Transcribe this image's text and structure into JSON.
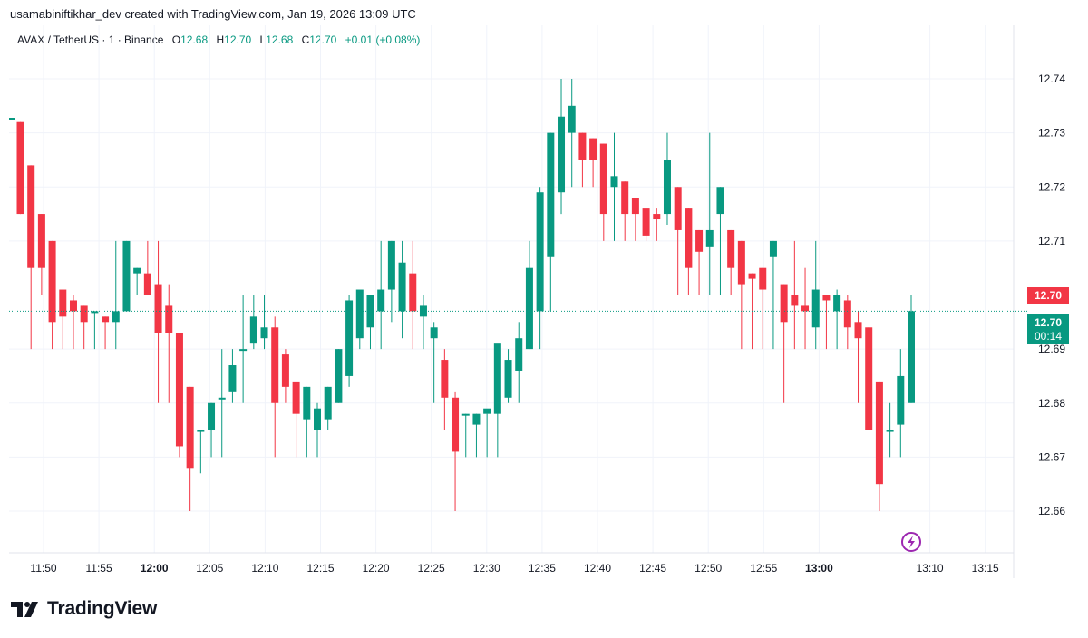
{
  "header": {
    "attribution": "usamabiniftikhar_dev created with TradingView.com, Jan 19, 2026 13:09 UTC"
  },
  "legend": {
    "symbol": "AVAX / TetherUS · 1 · Binance",
    "o_label": "O",
    "o_value": "12.68",
    "h_label": "H",
    "h_value": "12.70",
    "l_label": "L",
    "l_value": "12.68",
    "c_label": "C",
    "c_value": "12.70",
    "change": "+0.01 (+0.08%)"
  },
  "price_badges": {
    "high_marker": "12.70",
    "last_price": "12.70",
    "countdown": "00:14"
  },
  "footer": {
    "brand": "TradingView"
  },
  "colors": {
    "up": "#089981",
    "down": "#F23645",
    "grid": "#F0F3FA",
    "text": "#131722",
    "accent": "#9C27B0"
  },
  "chart_data": {
    "type": "candlestick",
    "title": "AVAX / TetherUS · 1 · Binance",
    "y_range": [
      12.655,
      12.745
    ],
    "y_ticks": [
      "12.74",
      "12.73",
      "12.72",
      "12.71",
      "12.70",
      "12.69",
      "12.68",
      "12.67",
      "12.66"
    ],
    "x_ticks": [
      {
        "label": "11:50",
        "bold": false
      },
      {
        "label": "11:55",
        "bold": false
      },
      {
        "label": "12:00",
        "bold": true
      },
      {
        "label": "12:05",
        "bold": false
      },
      {
        "label": "12:10",
        "bold": false
      },
      {
        "label": "12:15",
        "bold": false
      },
      {
        "label": "12:20",
        "bold": false
      },
      {
        "label": "12:25",
        "bold": false
      },
      {
        "label": "12:30",
        "bold": false
      },
      {
        "label": "12:35",
        "bold": false
      },
      {
        "label": "12:40",
        "bold": false
      },
      {
        "label": "12:45",
        "bold": false
      },
      {
        "label": "12:50",
        "bold": false
      },
      {
        "label": "12:55",
        "bold": false
      },
      {
        "label": "13:00",
        "bold": true
      },
      {
        "label": "13:10",
        "bold": false
      },
      {
        "label": "13:15",
        "bold": false
      }
    ],
    "x_tick_minutes": [
      0,
      5,
      10,
      15,
      20,
      25,
      30,
      35,
      40,
      45,
      50,
      55,
      60,
      65,
      70,
      80,
      85
    ],
    "time_start": "11:48",
    "candles_ohlc": [
      [
        12.732,
        12.732,
        12.715,
        12.715
      ],
      [
        12.724,
        12.724,
        12.69,
        12.705
      ],
      [
        12.715,
        12.715,
        12.7,
        12.705
      ],
      [
        12.71,
        12.71,
        12.69,
        12.695
      ],
      [
        12.701,
        12.701,
        12.69,
        12.696
      ],
      [
        12.699,
        12.7,
        12.69,
        12.697
      ],
      [
        12.698,
        12.698,
        12.69,
        12.695
      ],
      [
        12.697,
        12.697,
        12.69,
        12.697
      ],
      [
        12.696,
        12.696,
        12.69,
        12.695
      ],
      [
        12.695,
        12.71,
        12.69,
        12.697
      ],
      [
        12.697,
        12.71,
        12.697,
        12.71
      ],
      [
        12.704,
        12.705,
        12.7,
        12.705
      ],
      [
        12.704,
        12.71,
        12.7,
        12.7
      ],
      [
        12.702,
        12.71,
        12.68,
        12.693
      ],
      [
        12.698,
        12.702,
        12.68,
        12.693
      ],
      [
        12.693,
        12.693,
        12.67,
        12.672
      ],
      [
        12.683,
        12.683,
        12.66,
        12.668
      ],
      [
        12.675,
        12.675,
        12.667,
        12.675
      ],
      [
        12.675,
        12.68,
        12.67,
        12.68
      ],
      [
        12.681,
        12.69,
        12.67,
        12.681
      ],
      [
        12.682,
        12.69,
        12.68,
        12.687
      ],
      [
        12.69,
        12.7,
        12.68,
        12.69
      ],
      [
        12.691,
        12.7,
        12.69,
        12.696
      ],
      [
        12.692,
        12.7,
        12.69,
        12.694
      ],
      [
        12.694,
        12.696,
        12.67,
        12.68
      ],
      [
        12.689,
        12.69,
        12.68,
        12.683
      ],
      [
        12.684,
        12.684,
        12.67,
        12.678
      ],
      [
        12.677,
        12.683,
        12.67,
        12.683
      ],
      [
        12.675,
        12.68,
        12.67,
        12.679
      ],
      [
        12.677,
        12.683,
        12.675,
        12.683
      ],
      [
        12.68,
        12.69,
        12.68,
        12.69
      ],
      [
        12.685,
        12.7,
        12.683,
        12.699
      ],
      [
        12.692,
        12.7,
        12.69,
        12.701
      ],
      [
        12.694,
        12.7,
        12.69,
        12.7
      ],
      [
        12.697,
        12.71,
        12.69,
        12.701
      ],
      [
        12.701,
        12.71,
        12.695,
        12.71
      ],
      [
        12.697,
        12.71,
        12.692,
        12.706
      ],
      [
        12.704,
        12.71,
        12.69,
        12.697
      ],
      [
        12.696,
        12.7,
        12.69,
        12.698
      ],
      [
        12.692,
        12.695,
        12.68,
        12.694
      ],
      [
        12.688,
        12.69,
        12.675,
        12.681
      ],
      [
        12.681,
        12.682,
        12.66,
        12.671
      ],
      [
        12.678,
        12.678,
        12.67,
        12.678
      ],
      [
        12.676,
        12.678,
        12.67,
        12.678
      ],
      [
        12.678,
        12.678,
        12.67,
        12.679
      ],
      [
        12.678,
        12.69,
        12.67,
        12.691
      ],
      [
        12.681,
        12.69,
        12.68,
        12.688
      ],
      [
        12.686,
        12.695,
        12.68,
        12.692
      ],
      [
        12.69,
        12.71,
        12.69,
        12.705
      ],
      [
        12.697,
        12.72,
        12.69,
        12.719
      ],
      [
        12.707,
        12.73,
        12.697,
        12.73
      ],
      [
        12.719,
        12.74,
        12.715,
        12.733
      ],
      [
        12.73,
        12.74,
        12.72,
        12.735
      ],
      [
        12.73,
        12.73,
        12.72,
        12.725
      ],
      [
        12.729,
        12.729,
        12.72,
        12.725
      ],
      [
        12.728,
        12.728,
        12.71,
        12.715
      ],
      [
        12.72,
        12.73,
        12.71,
        12.722
      ],
      [
        12.721,
        12.721,
        12.71,
        12.715
      ],
      [
        12.718,
        12.718,
        12.71,
        12.715
      ],
      [
        12.716,
        12.716,
        12.71,
        12.711
      ],
      [
        12.715,
        12.716,
        12.71,
        12.714
      ],
      [
        12.715,
        12.73,
        12.713,
        12.725
      ],
      [
        12.72,
        12.72,
        12.7,
        12.712
      ],
      [
        12.716,
        12.716,
        12.7,
        12.705
      ],
      [
        12.712,
        12.712,
        12.7,
        12.708
      ],
      [
        12.709,
        12.73,
        12.7,
        12.712
      ],
      [
        12.715,
        12.72,
        12.7,
        12.72
      ],
      [
        12.712,
        12.712,
        12.7,
        12.705
      ],
      [
        12.71,
        12.71,
        12.69,
        12.702
      ],
      [
        12.704,
        12.704,
        12.69,
        12.703
      ],
      [
        12.705,
        12.705,
        12.69,
        12.701
      ],
      [
        12.707,
        12.71,
        12.69,
        12.71
      ],
      [
        12.702,
        12.702,
        12.68,
        12.695
      ],
      [
        12.7,
        12.71,
        12.69,
        12.698
      ],
      [
        12.698,
        12.705,
        12.69,
        12.697
      ],
      [
        12.694,
        12.71,
        12.69,
        12.701
      ],
      [
        12.7,
        12.7,
        12.69,
        12.699
      ],
      [
        12.697,
        12.701,
        12.69,
        12.7
      ],
      [
        12.699,
        12.7,
        12.69,
        12.694
      ],
      [
        12.695,
        12.697,
        12.68,
        12.692
      ],
      [
        12.694,
        12.694,
        12.675,
        12.675
      ],
      [
        12.684,
        12.684,
        12.66,
        12.665
      ],
      [
        12.675,
        12.68,
        12.67,
        12.675
      ],
      [
        12.676,
        12.69,
        12.67,
        12.685
      ],
      [
        12.68,
        12.7,
        12.68,
        12.697
      ]
    ],
    "last_price": 12.697,
    "high_marker": 12.7
  }
}
